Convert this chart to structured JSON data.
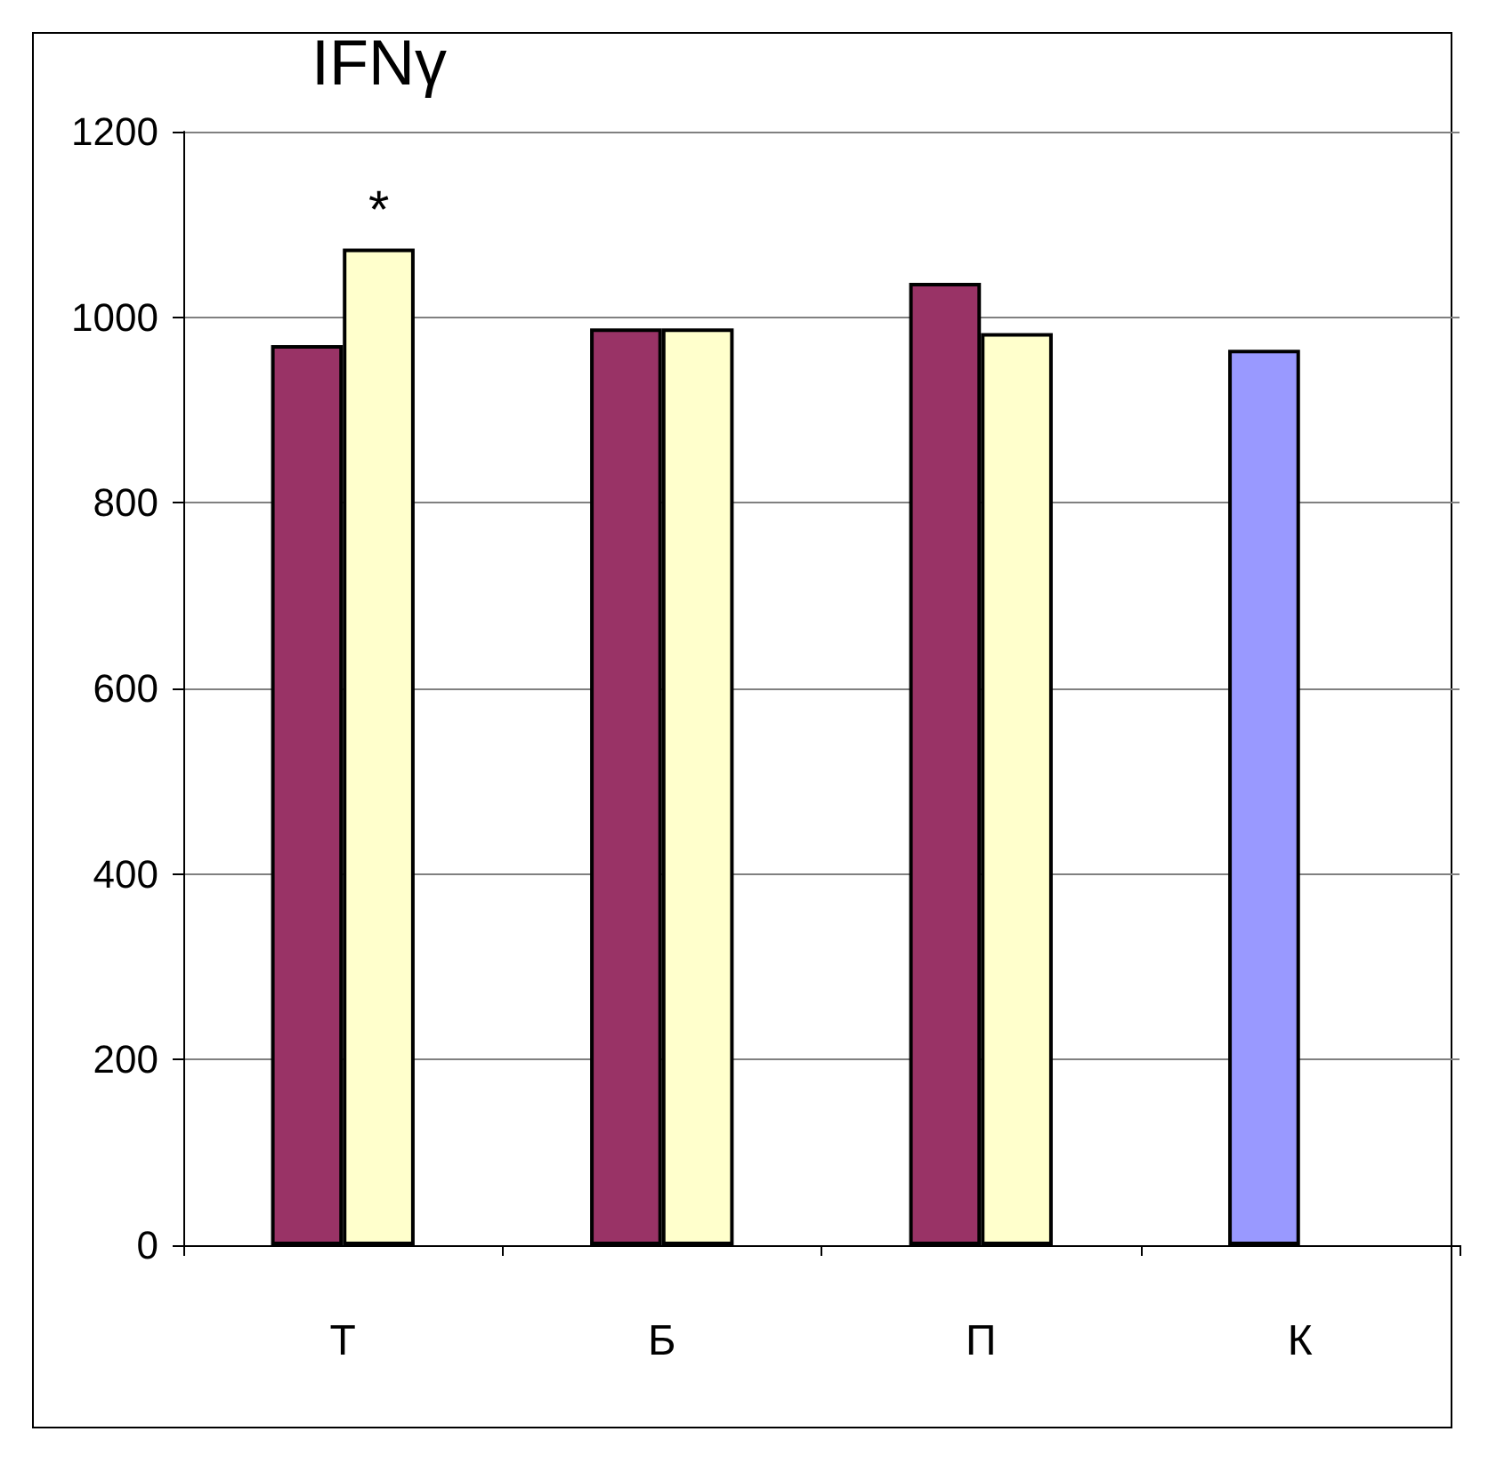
{
  "chart_data": {
    "type": "bar",
    "title": "IFNγ",
    "categories": [
      "Т",
      "Б",
      "П",
      "К"
    ],
    "series": [
      {
        "colors": [
          "#993366",
          "#993366",
          "#993366",
          "#9999ff"
        ],
        "values": [
          970,
          988,
          1037,
          965
        ]
      },
      {
        "color": "#ffffcc",
        "values": [
          1074,
          988,
          983,
          null
        ]
      }
    ],
    "ylim": [
      0,
      1200
    ],
    "yticks": [
      0,
      200,
      400,
      600,
      800,
      1000,
      1200
    ],
    "grid": "y",
    "annotations": [
      {
        "text": "*",
        "x": "Т",
        "y": 1074
      }
    ]
  }
}
